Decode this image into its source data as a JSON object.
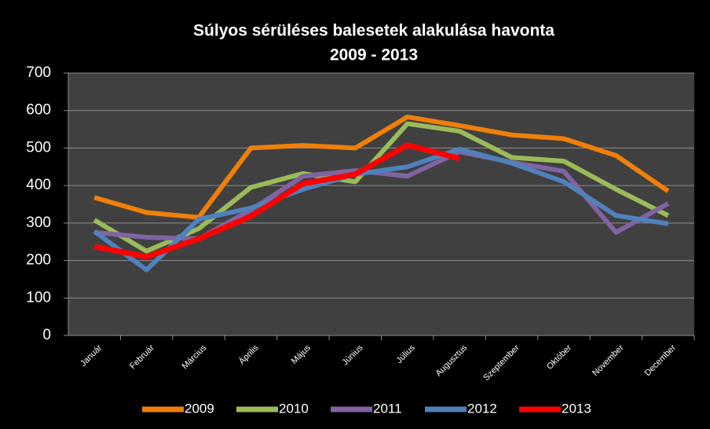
{
  "chart_data": {
    "type": "line",
    "title": "Súlyos sérüléses balesetek alakulása havonta",
    "subtitle": "2009 - 2013",
    "categories": [
      "Január",
      "Február",
      "Március",
      "Április",
      "Május",
      "Június",
      "Július",
      "Augusztus",
      "Szeptember",
      "Október",
      "November",
      "December"
    ],
    "series": [
      {
        "name": "2009",
        "color": "#f07f09",
        "values": [
          368,
          328,
          315,
          500,
          507,
          500,
          583,
          560,
          535,
          525,
          480,
          385
        ]
      },
      {
        "name": "2010",
        "color": "#9bbb59",
        "values": [
          308,
          225,
          285,
          395,
          432,
          410,
          565,
          545,
          475,
          465,
          390,
          320
        ]
      },
      {
        "name": "2011",
        "color": "#8064a2",
        "values": [
          275,
          262,
          258,
          335,
          425,
          440,
          425,
          490,
          462,
          438,
          275,
          352
        ]
      },
      {
        "name": "2012",
        "color": "#4f81bd",
        "values": [
          278,
          175,
          310,
          340,
          390,
          430,
          450,
          497,
          460,
          410,
          320,
          298
        ]
      },
      {
        "name": "2013",
        "color": "#ff0000",
        "values": [
          237,
          210,
          258,
          318,
          405,
          430,
          508,
          472,
          null,
          null,
          null,
          null
        ]
      }
    ],
    "ylim": [
      0,
      700
    ],
    "yticks": [
      0,
      100,
      200,
      300,
      400,
      500,
      600,
      700
    ],
    "grid": true,
    "legend": "bottom"
  }
}
